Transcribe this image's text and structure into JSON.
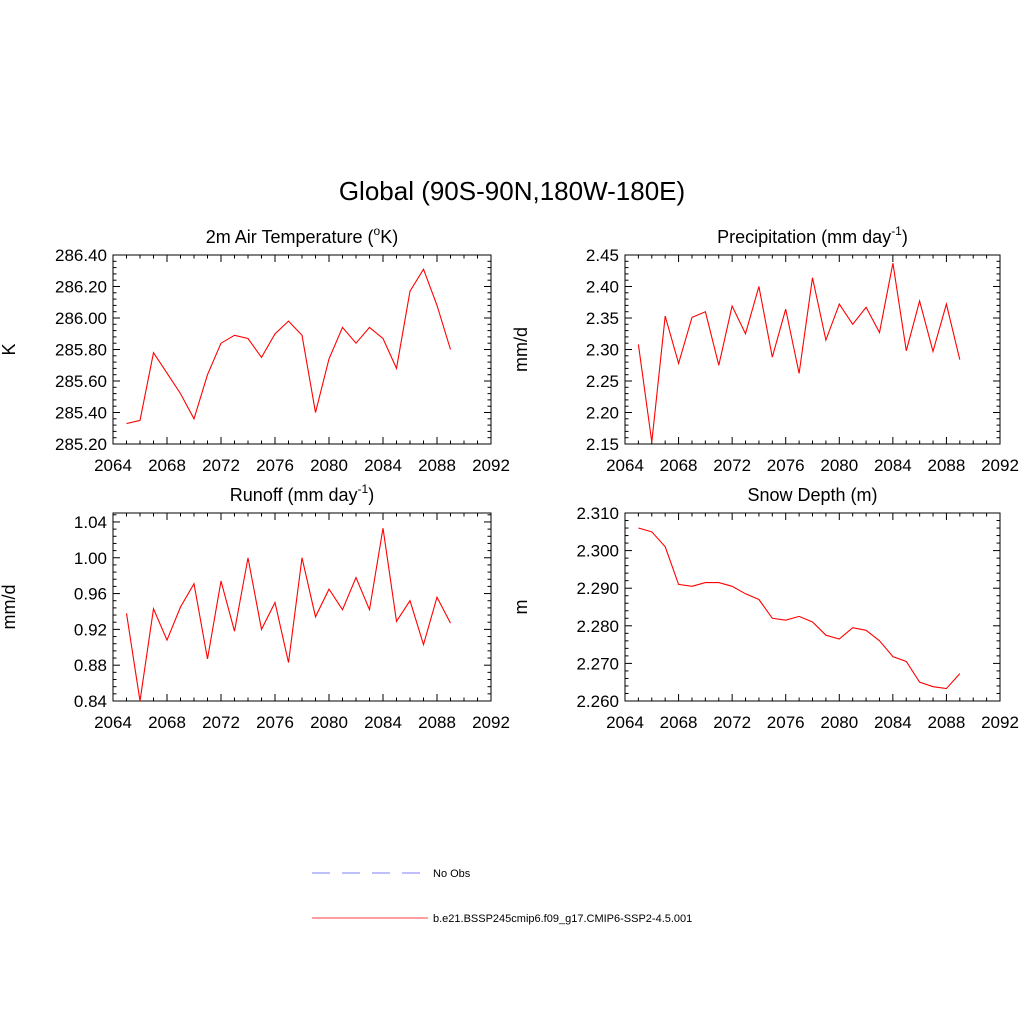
{
  "title": "Global (90S-90N,180W-180E)",
  "legend": {
    "items": [
      {
        "label": "No Obs",
        "style": "dashed",
        "color": "#9999ff"
      },
      {
        "label": "b.e21.BSSP245cmip6.f09_g17.CMIP6-SSP2-4.5.001",
        "style": "solid",
        "color": "#ff6666"
      }
    ]
  },
  "chart_data": [
    {
      "type": "line",
      "title": "2m Air Temperature (",
      "title_sup": "o",
      "title_after": "K)",
      "ylabel": "K",
      "xlim": [
        2064,
        2092
      ],
      "ylim": [
        285.2,
        286.4
      ],
      "xticks": [
        "2064",
        "2068",
        "2072",
        "2076",
        "2080",
        "2084",
        "2088",
        "2092"
      ],
      "yticks": [
        "285.20",
        "285.40",
        "285.60",
        "285.80",
        "286.00",
        "286.20",
        "286.40"
      ],
      "series": [
        {
          "color": "#ff0000",
          "x": [
            2065,
            2066,
            2067,
            2068,
            2069,
            2070,
            2071,
            2072,
            2073,
            2074,
            2075,
            2076,
            2077,
            2078,
            2079,
            2080,
            2081,
            2082,
            2083,
            2084,
            2085,
            2086,
            2087,
            2088,
            2089
          ],
          "y": [
            285.33,
            285.35,
            285.78,
            285.65,
            285.52,
            285.36,
            285.64,
            285.84,
            285.89,
            285.87,
            285.75,
            285.9,
            285.98,
            285.89,
            285.4,
            285.74,
            285.94,
            285.84,
            285.94,
            285.87,
            285.68,
            286.17,
            286.31,
            286.08,
            285.8
          ]
        }
      ]
    },
    {
      "type": "line",
      "title": "Precipitation (mm day",
      "title_sup": "-1",
      "title_after": ")",
      "ylabel": "mm/d",
      "xlim": [
        2064,
        2092
      ],
      "ylim": [
        2.15,
        2.45
      ],
      "xticks": [
        "2064",
        "2068",
        "2072",
        "2076",
        "2080",
        "2084",
        "2088",
        "2092"
      ],
      "yticks": [
        "2.15",
        "2.20",
        "2.25",
        "2.30",
        "2.35",
        "2.40",
        "2.45"
      ],
      "series": [
        {
          "color": "#ff0000",
          "x": [
            2065,
            2066,
            2067,
            2068,
            2069,
            2070,
            2071,
            2072,
            2073,
            2074,
            2075,
            2076,
            2077,
            2078,
            2079,
            2080,
            2081,
            2082,
            2083,
            2084,
            2085,
            2086,
            2087,
            2088,
            2089
          ],
          "y": [
            2.308,
            2.153,
            2.353,
            2.278,
            2.351,
            2.36,
            2.275,
            2.369,
            2.325,
            2.4,
            2.288,
            2.364,
            2.262,
            2.414,
            2.315,
            2.372,
            2.34,
            2.367,
            2.327,
            2.437,
            2.298,
            2.377,
            2.297,
            2.372,
            2.284
          ]
        }
      ]
    },
    {
      "type": "line",
      "title": "Runoff (mm day",
      "title_sup": "-1",
      "title_after": ")",
      "ylabel": "mm/d",
      "xlim": [
        2064,
        2092
      ],
      "ylim": [
        0.84,
        1.05
      ],
      "xticks": [
        "2064",
        "2068",
        "2072",
        "2076",
        "2080",
        "2084",
        "2088",
        "2092"
      ],
      "yticks": [
        "0.84",
        "0.88",
        "0.92",
        "0.96",
        "1.00",
        "1.04"
      ],
      "series": [
        {
          "color": "#ff0000",
          "x": [
            2065,
            2066,
            2067,
            2068,
            2069,
            2070,
            2071,
            2072,
            2073,
            2074,
            2075,
            2076,
            2077,
            2078,
            2079,
            2080,
            2081,
            2082,
            2083,
            2084,
            2085,
            2086,
            2087,
            2088,
            2089
          ],
          "y": [
            0.938,
            0.84,
            0.943,
            0.908,
            0.945,
            0.971,
            0.887,
            0.974,
            0.918,
            1.0,
            0.92,
            0.95,
            0.883,
            1.0,
            0.934,
            0.965,
            0.942,
            0.978,
            0.942,
            1.033,
            0.929,
            0.952,
            0.903,
            0.956,
            0.927
          ]
        }
      ]
    },
    {
      "type": "line",
      "title": "Snow Depth (m)",
      "title_sup": "",
      "title_after": "",
      "ylabel": "m",
      "xlim": [
        2064,
        2092
      ],
      "ylim": [
        2.26,
        2.31
      ],
      "xticks": [
        "2064",
        "2068",
        "2072",
        "2076",
        "2080",
        "2084",
        "2088",
        "2092"
      ],
      "yticks": [
        "2.260",
        "2.270",
        "2.280",
        "2.290",
        "2.300",
        "2.310"
      ],
      "series": [
        {
          "color": "#ff0000",
          "x": [
            2065,
            2066,
            2067,
            2068,
            2069,
            2070,
            2071,
            2072,
            2073,
            2074,
            2075,
            2076,
            2077,
            2078,
            2079,
            2080,
            2081,
            2082,
            2083,
            2084,
            2085,
            2086,
            2087,
            2088,
            2089
          ],
          "y": [
            2.306,
            2.305,
            2.301,
            2.291,
            2.2905,
            2.2915,
            2.2915,
            2.2905,
            2.2885,
            2.287,
            2.282,
            2.2815,
            2.2825,
            2.281,
            2.2775,
            2.2765,
            2.2795,
            2.2788,
            2.276,
            2.2718,
            2.2705,
            2.265,
            2.2638,
            2.2633,
            2.2673
          ]
        }
      ]
    }
  ]
}
